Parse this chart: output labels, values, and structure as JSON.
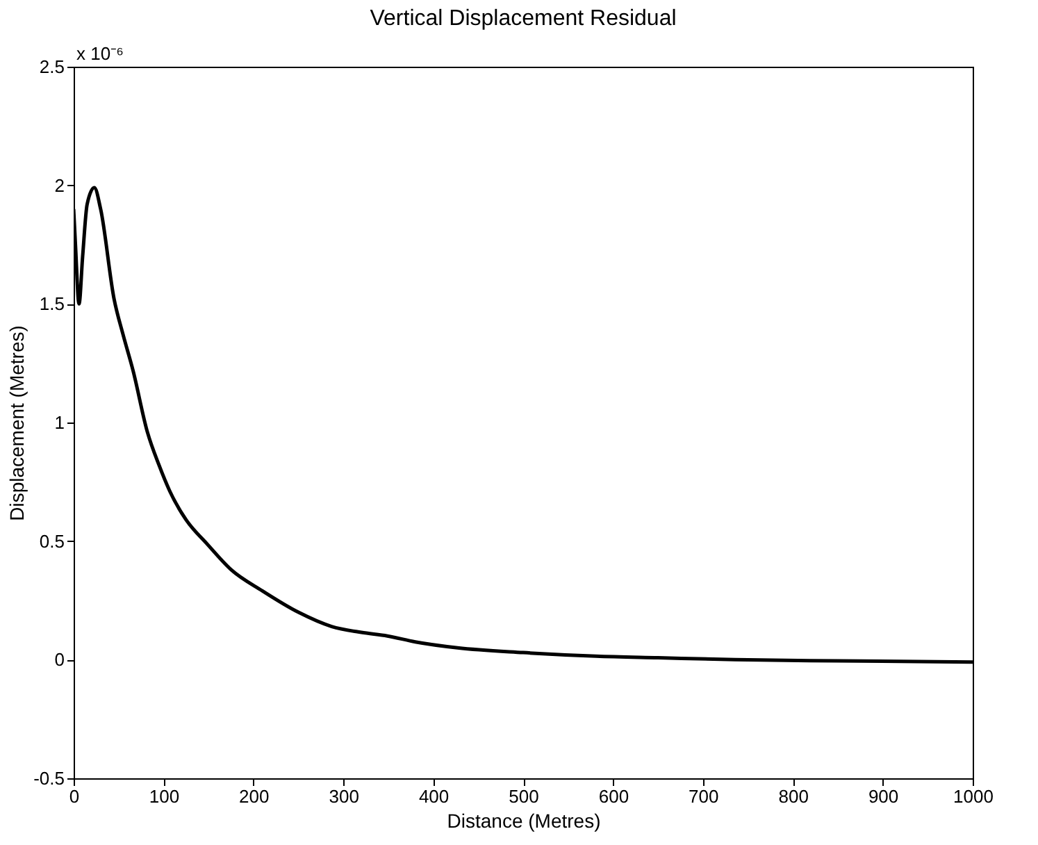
{
  "chart_data": {
    "type": "line",
    "title": "Vertical Displacement Residual",
    "xlabel": "Distance (Metres)",
    "ylabel": "Displacement (Metres)",
    "annotations": [
      "x 10⁻⁶"
    ],
    "x": [
      0,
      2,
      6,
      10,
      15,
      23,
      30,
      45,
      55,
      66,
      82,
      95,
      107,
      125,
      148,
      175,
      210,
      250,
      287,
      320,
      349,
      380,
      427,
      500,
      581,
      650,
      736,
      850,
      1000
    ],
    "series": [
      {
        "color": "#000000",
        "values": [
          1.9,
          1.75,
          1.5,
          1.7,
          1.92,
          1.99,
          1.9,
          1.52,
          1.37,
          1.22,
          0.96,
          0.82,
          0.71,
          0.59,
          0.49,
          0.38,
          0.29,
          0.2,
          0.14,
          0.115,
          0.1,
          0.075,
          0.05,
          0.03,
          0.015,
          0.008,
          0.0,
          -0.005,
          -0.01
        ]
      }
    ],
    "xlim": [
      0,
      1000
    ],
    "xticks": [
      0,
      100,
      200,
      300,
      400,
      500,
      600,
      700,
      800,
      900,
      1000
    ],
    "ylim": [
      -0.5,
      2.5
    ],
    "yticks": [
      -0.5,
      0,
      0.5,
      1,
      1.5,
      2,
      2.5
    ],
    "grid": false,
    "legend": false,
    "line_style": "solid",
    "marker": "none"
  }
}
